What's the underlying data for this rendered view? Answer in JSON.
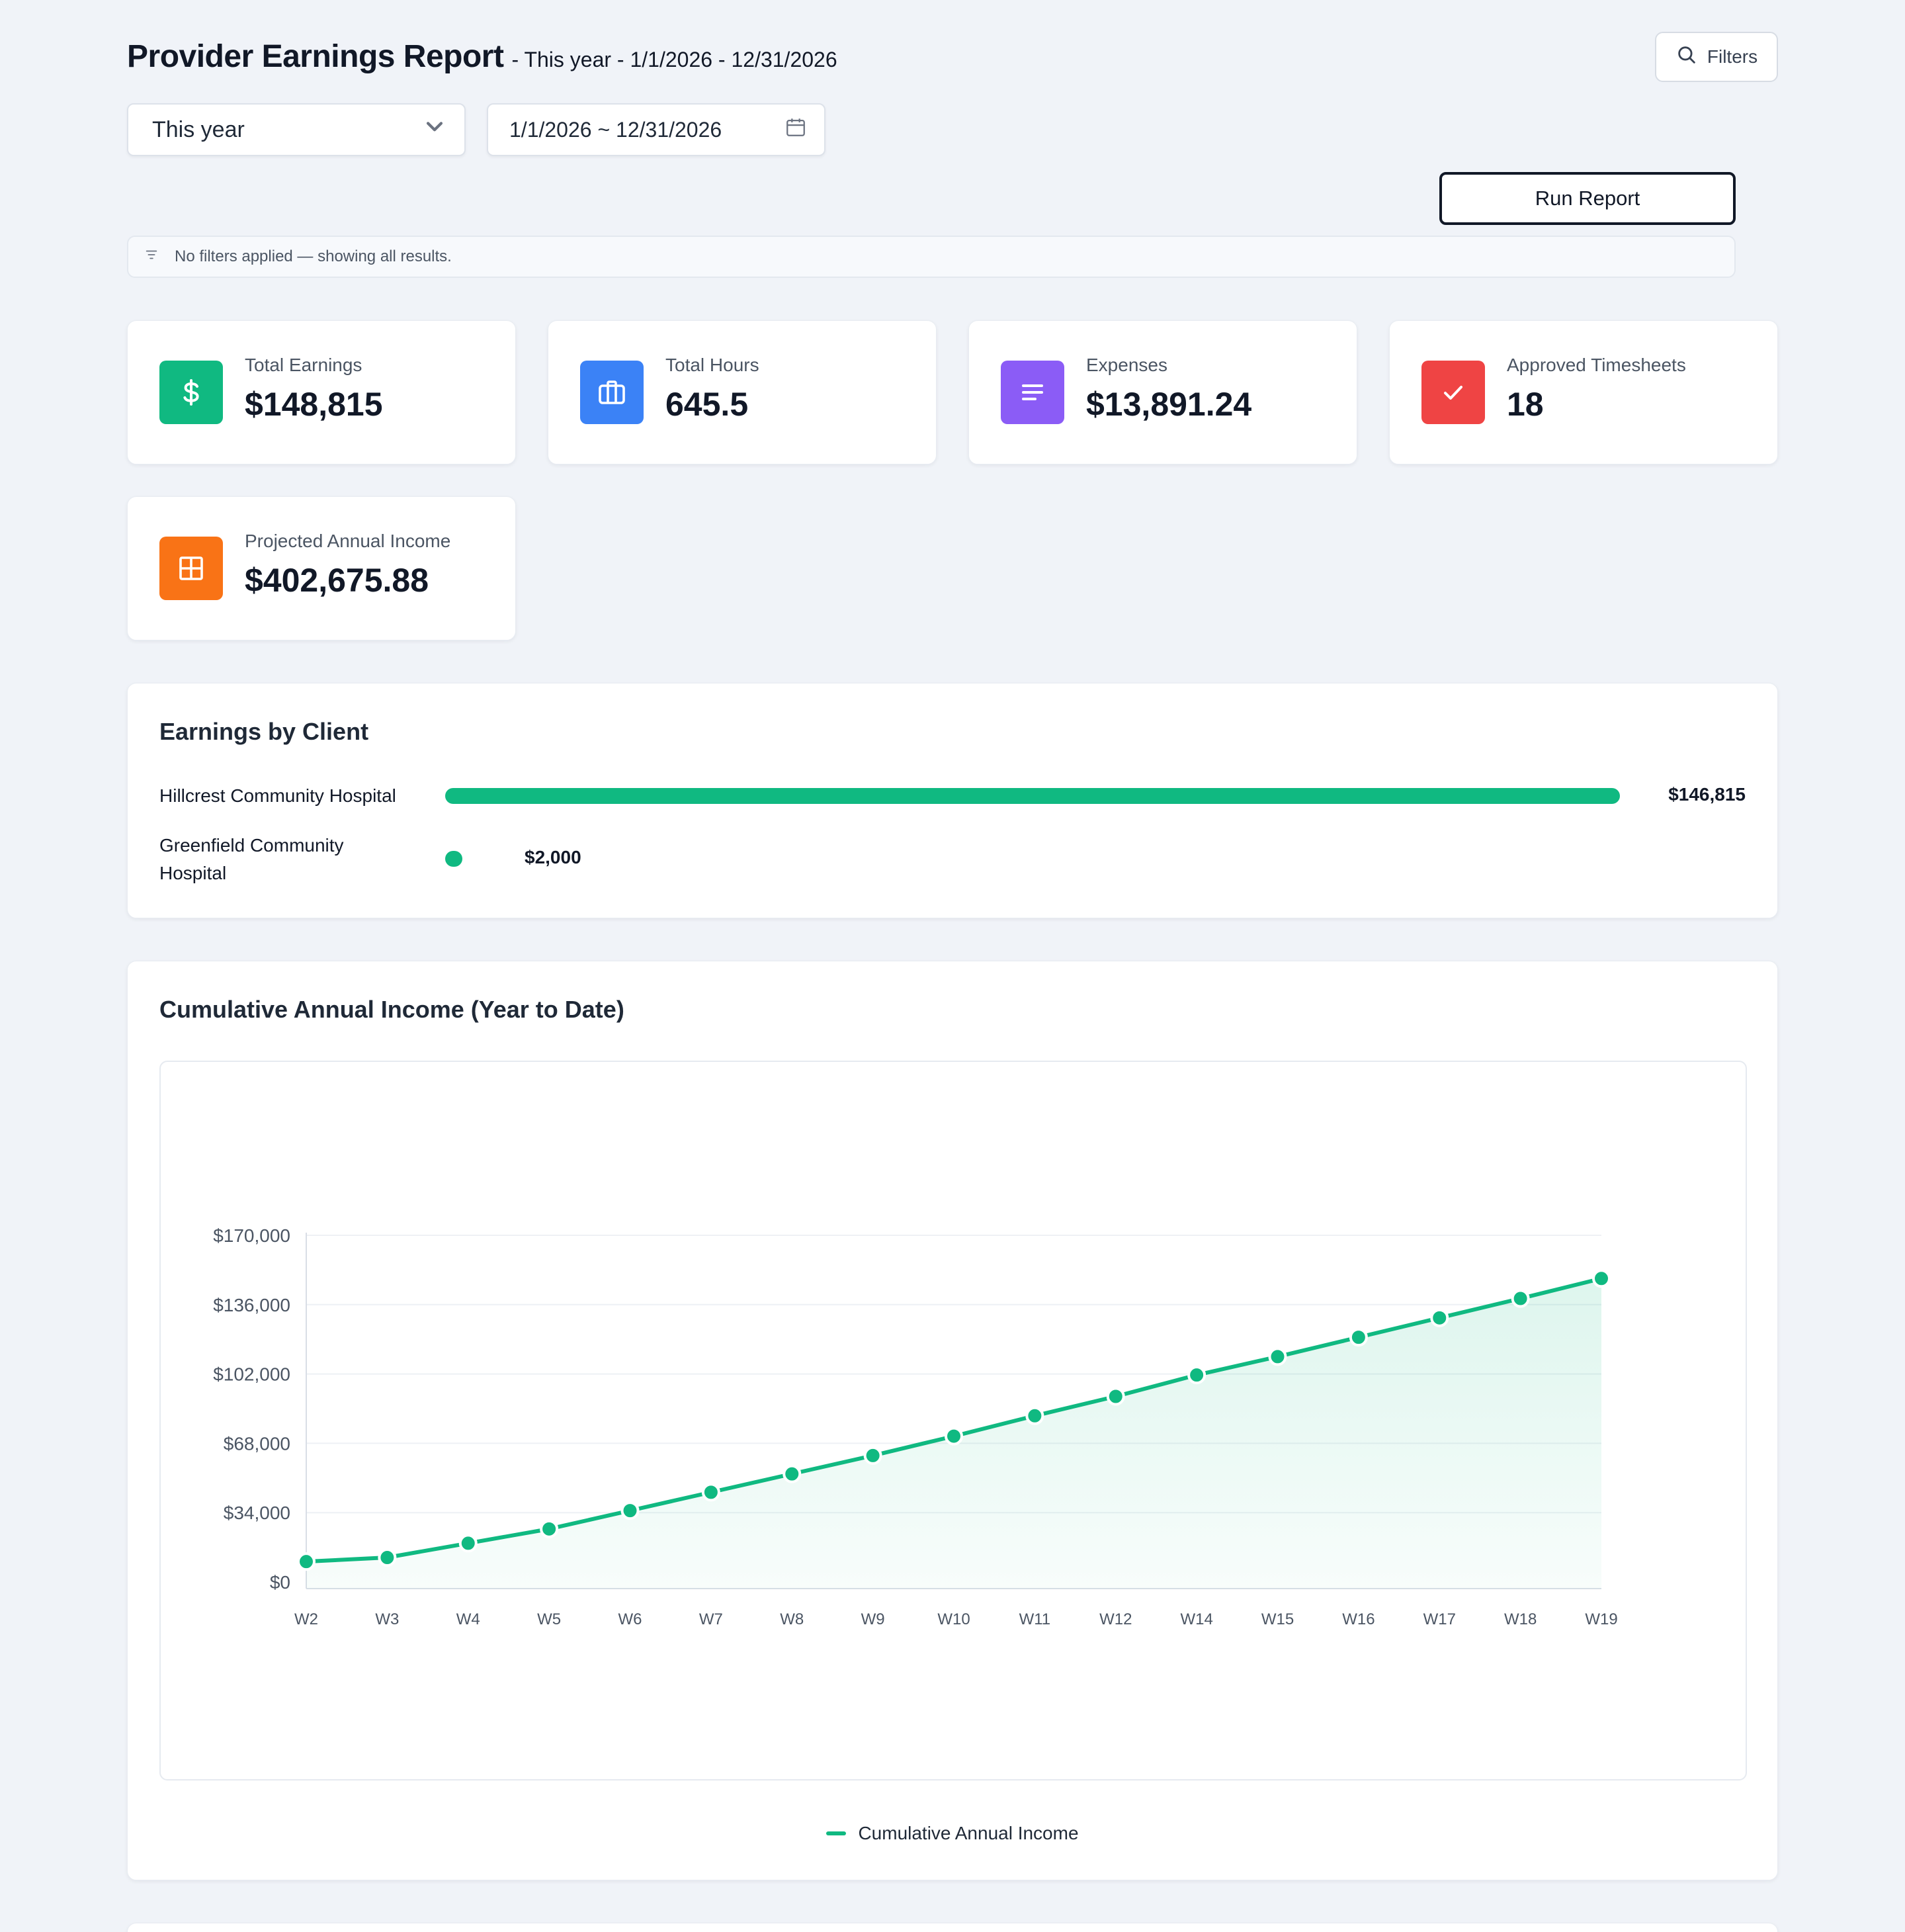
{
  "header": {
    "title": "Provider Earnings Report",
    "subtitle": "- This year - 1/1/2026 - 12/31/2026",
    "filters_label": "Filters"
  },
  "controls": {
    "period_value": "This year",
    "date_range_value": "1/1/2026 ~ 12/31/2026",
    "run_label": "Run Report",
    "filter_note": "No filters applied — showing all results."
  },
  "stats": [
    {
      "label": "Total Earnings",
      "value": "$148,815",
      "color": "#10b981",
      "icon": "dollar-icon"
    },
    {
      "label": "Total Hours",
      "value": "645.5",
      "color": "#3b82f6",
      "icon": "briefcase-icon"
    },
    {
      "label": "Expenses",
      "value": "$13,891.24",
      "color": "#8b5cf6",
      "icon": "list-icon"
    },
    {
      "label": "Approved Timesheets",
      "value": "18",
      "color": "#ef4444",
      "icon": "check-icon"
    },
    {
      "label": "Projected Annual Income",
      "value": "$402,675.88",
      "color": "#f97316",
      "icon": "grid-icon"
    }
  ],
  "earnings_by_client": {
    "title": "Earnings by Client",
    "clients": [
      {
        "name": "Hillcrest Community Hospital",
        "value": "$146,815",
        "amount": 146815
      },
      {
        "name": "Greenfield Community Hospital",
        "value": "$2,000",
        "amount": 2000
      }
    ]
  },
  "chart_data": {
    "type": "area",
    "title": "Cumulative Annual Income (Year to Date)",
    "categories": [
      "W2",
      "W3",
      "W4",
      "W5",
      "W6",
      "W7",
      "W8",
      "W9",
      "W10",
      "W11",
      "W12",
      "W14",
      "W15",
      "W16",
      "W17",
      "W18",
      "W19"
    ],
    "series": [
      {
        "name": "Cumulative Annual Income",
        "values": [
          10000,
          12000,
          19000,
          26000,
          35000,
          44000,
          53000,
          62000,
          71500,
          81500,
          91000,
          101500,
          110500,
          120000,
          129500,
          139000,
          148815
        ]
      }
    ],
    "yticks": [
      "$0",
      "$34,000",
      "$68,000",
      "$102,000",
      "$136,000",
      "$170,000"
    ],
    "ylim": [
      0,
      170000
    ],
    "grid": true,
    "legend_position": "bottom-center",
    "color": "#10b981"
  }
}
